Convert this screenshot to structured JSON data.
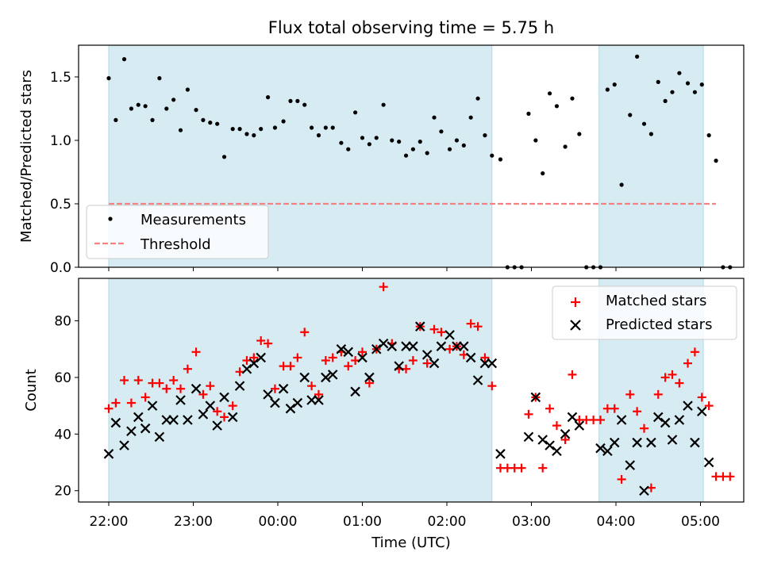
{
  "chart_data": [
    {
      "type": "scatter",
      "title": "Flux total observing time = 5.75 h",
      "ylabel": "Matched/Predicted stars",
      "xlabel": "",
      "ylim": [
        0,
        1.75
      ],
      "x_tick_labels": [
        "22:00",
        "23:00",
        "00:00",
        "01:00",
        "02:00",
        "03:00",
        "04:00",
        "05:00"
      ],
      "y_ticks": [
        0.0,
        0.5,
        1.0,
        1.5
      ],
      "y_tick_labels": [
        "0.0",
        "0.5",
        "1.0",
        "1.5"
      ],
      "legend_position": "lower-left",
      "shaded_intervals": [
        [
          "22:00",
          "02:32"
        ],
        [
          "03:48",
          "05:02"
        ]
      ],
      "series": [
        {
          "name": "Measurements",
          "color": "#000000",
          "points": [
            [
              "22:00",
              1.49
            ],
            [
              "22:05",
              1.16
            ],
            [
              "22:11",
              1.64
            ],
            [
              "22:16",
              1.25
            ],
            [
              "22:21",
              1.28
            ],
            [
              "22:26",
              1.27
            ],
            [
              "22:31",
              1.16
            ],
            [
              "22:36",
              1.49
            ],
            [
              "22:41",
              1.25
            ],
            [
              "22:46",
              1.32
            ],
            [
              "22:51",
              1.08
            ],
            [
              "22:56",
              1.4
            ],
            [
              "23:02",
              1.24
            ],
            [
              "23:07",
              1.16
            ],
            [
              "23:12",
              1.14
            ],
            [
              "23:17",
              1.13
            ],
            [
              "23:22",
              0.87
            ],
            [
              "23:28",
              1.09
            ],
            [
              "23:33",
              1.09
            ],
            [
              "23:38",
              1.05
            ],
            [
              "23:43",
              1.04
            ],
            [
              "23:48",
              1.09
            ],
            [
              "23:53",
              1.34
            ],
            [
              "23:58",
              1.1
            ],
            [
              "00:04",
              1.15
            ],
            [
              "00:09",
              1.31
            ],
            [
              "00:14",
              1.31
            ],
            [
              "00:19",
              1.28
            ],
            [
              "00:24",
              1.1
            ],
            [
              "00:29",
              1.04
            ],
            [
              "00:34",
              1.1
            ],
            [
              "00:39",
              1.1
            ],
            [
              "00:45",
              0.98
            ],
            [
              "00:50",
              0.93
            ],
            [
              "00:55",
              1.22
            ],
            [
              "01:00",
              1.02
            ],
            [
              "01:05",
              0.97
            ],
            [
              "01:10",
              1.02
            ],
            [
              "01:15",
              1.28
            ],
            [
              "01:21",
              1.0
            ],
            [
              "01:26",
              0.99
            ],
            [
              "01:31",
              0.88
            ],
            [
              "01:36",
              0.93
            ],
            [
              "01:41",
              0.99
            ],
            [
              "01:46",
              0.9
            ],
            [
              "01:51",
              1.18
            ],
            [
              "01:56",
              1.07
            ],
            [
              "02:02",
              0.93
            ],
            [
              "02:07",
              1.0
            ],
            [
              "02:12",
              0.96
            ],
            [
              "02:17",
              1.18
            ],
            [
              "02:22",
              1.33
            ],
            [
              "02:27",
              1.04
            ],
            [
              "02:32",
              0.88
            ],
            [
              "02:38",
              0.85
            ],
            [
              "02:43",
              0.0
            ],
            [
              "02:48",
              0.0
            ],
            [
              "02:53",
              0.0
            ],
            [
              "02:58",
              1.21
            ],
            [
              "03:03",
              1.0
            ],
            [
              "03:08",
              0.74
            ],
            [
              "03:13",
              1.37
            ],
            [
              "03:18",
              1.27
            ],
            [
              "03:24",
              0.95
            ],
            [
              "03:29",
              1.33
            ],
            [
              "03:34",
              1.05
            ],
            [
              "03:39",
              0.0
            ],
            [
              "03:44",
              0.0
            ],
            [
              "03:49",
              0.0
            ],
            [
              "03:54",
              1.4
            ],
            [
              "03:59",
              1.44
            ],
            [
              "04:04",
              0.65
            ],
            [
              "04:10",
              1.2
            ],
            [
              "04:15",
              1.66
            ],
            [
              "04:20",
              1.13
            ],
            [
              "04:25",
              1.05
            ],
            [
              "04:30",
              1.46
            ],
            [
              "04:35",
              1.31
            ],
            [
              "04:40",
              1.38
            ],
            [
              "04:45",
              1.53
            ],
            [
              "04:51",
              1.45
            ],
            [
              "04:56",
              1.38
            ],
            [
              "05:01",
              1.44
            ],
            [
              "05:06",
              1.04
            ],
            [
              "05:11",
              0.84
            ],
            [
              "05:16",
              0.0
            ],
            [
              "05:21",
              0.0
            ]
          ]
        },
        {
          "name": "Threshold",
          "color": "#ff7f7f",
          "style": "dashed",
          "points": [
            [
              "22:00",
              0.5
            ],
            [
              "05:11",
              0.5
            ]
          ]
        }
      ]
    },
    {
      "type": "scatter",
      "title": "",
      "ylabel": "Count",
      "xlabel": "Time (UTC)",
      "ylim": [
        16,
        95
      ],
      "x_tick_labels": [
        "22:00",
        "23:00",
        "00:00",
        "01:00",
        "02:00",
        "03:00",
        "04:00",
        "05:00"
      ],
      "y_ticks": [
        20,
        40,
        60,
        80
      ],
      "y_tick_labels": [
        "20",
        "40",
        "60",
        "80"
      ],
      "legend_position": "upper-right",
      "shaded_intervals": [
        [
          "22:00",
          "02:32"
        ],
        [
          "03:48",
          "05:02"
        ]
      ],
      "series": [
        {
          "name": "Matched stars",
          "marker": "plus",
          "color": "#ff0000",
          "points": [
            [
              "22:00",
              49
            ],
            [
              "22:05",
              51
            ],
            [
              "22:11",
              59
            ],
            [
              "22:16",
              51
            ],
            [
              "22:21",
              59
            ],
            [
              "22:26",
              53
            ],
            [
              "22:31",
              58
            ],
            [
              "22:36",
              58
            ],
            [
              "22:41",
              56
            ],
            [
              "22:46",
              59
            ],
            [
              "22:51",
              56
            ],
            [
              "22:56",
              63
            ],
            [
              "23:02",
              69
            ],
            [
              "23:07",
              54
            ],
            [
              "23:12",
              57
            ],
            [
              "23:17",
              48
            ],
            [
              "23:22",
              46
            ],
            [
              "23:28",
              50
            ],
            [
              "23:33",
              62
            ],
            [
              "23:38",
              66
            ],
            [
              "23:43",
              67
            ],
            [
              "23:48",
              73
            ],
            [
              "23:53",
              72
            ],
            [
              "23:58",
              56
            ],
            [
              "00:04",
              64
            ],
            [
              "00:09",
              64
            ],
            [
              "00:14",
              67
            ],
            [
              "00:19",
              76
            ],
            [
              "00:24",
              57
            ],
            [
              "00:29",
              54
            ],
            [
              "00:34",
              66
            ],
            [
              "00:39",
              67
            ],
            [
              "00:45",
              69
            ],
            [
              "00:50",
              64
            ],
            [
              "00:55",
              66
            ],
            [
              "01:00",
              69
            ],
            [
              "01:05",
              58
            ],
            [
              "01:10",
              70
            ],
            [
              "01:15",
              92
            ],
            [
              "01:21",
              72
            ],
            [
              "01:26",
              63
            ],
            [
              "01:31",
              63
            ],
            [
              "01:36",
              66
            ],
            [
              "01:41",
              78
            ],
            [
              "01:46",
              65
            ],
            [
              "01:51",
              77
            ],
            [
              "01:56",
              76
            ],
            [
              "02:02",
              70
            ],
            [
              "02:07",
              71
            ],
            [
              "02:12",
              68
            ],
            [
              "02:17",
              79
            ],
            [
              "02:22",
              78
            ],
            [
              "02:27",
              67
            ],
            [
              "02:32",
              57
            ],
            [
              "02:38",
              28
            ],
            [
              "02:43",
              28
            ],
            [
              "02:48",
              28
            ],
            [
              "02:53",
              28
            ],
            [
              "02:58",
              47
            ],
            [
              "03:03",
              53
            ],
            [
              "03:08",
              28
            ],
            [
              "03:13",
              49
            ],
            [
              "03:18",
              43
            ],
            [
              "03:24",
              38
            ],
            [
              "03:29",
              61
            ],
            [
              "03:34",
              45
            ],
            [
              "03:39",
              45
            ],
            [
              "03:44",
              45
            ],
            [
              "03:49",
              45
            ],
            [
              "03:54",
              49
            ],
            [
              "03:59",
              49
            ],
            [
              "04:04",
              24
            ],
            [
              "04:10",
              54
            ],
            [
              "04:15",
              48
            ],
            [
              "04:20",
              42
            ],
            [
              "04:25",
              21
            ],
            [
              "04:30",
              54
            ],
            [
              "04:35",
              60
            ],
            [
              "04:40",
              61
            ],
            [
              "04:45",
              58
            ],
            [
              "04:51",
              65
            ],
            [
              "04:56",
              69
            ],
            [
              "05:01",
              53
            ],
            [
              "05:06",
              50
            ],
            [
              "05:11",
              25
            ],
            [
              "05:16",
              25
            ],
            [
              "05:21",
              25
            ]
          ]
        },
        {
          "name": "Predicted stars",
          "marker": "x",
          "color": "#000000",
          "points": [
            [
              "22:00",
              33
            ],
            [
              "22:05",
              44
            ],
            [
              "22:11",
              36
            ],
            [
              "22:16",
              41
            ],
            [
              "22:21",
              46
            ],
            [
              "22:26",
              42
            ],
            [
              "22:31",
              50
            ],
            [
              "22:36",
              39
            ],
            [
              "22:41",
              45
            ],
            [
              "22:46",
              45
            ],
            [
              "22:51",
              52
            ],
            [
              "22:56",
              45
            ],
            [
              "23:02",
              56
            ],
            [
              "23:07",
              47
            ],
            [
              "23:12",
              50
            ],
            [
              "23:17",
              43
            ],
            [
              "23:22",
              53
            ],
            [
              "23:28",
              46
            ],
            [
              "23:33",
              57
            ],
            [
              "23:38",
              63
            ],
            [
              "23:43",
              65
            ],
            [
              "23:48",
              67
            ],
            [
              "23:53",
              54
            ],
            [
              "23:58",
              51
            ],
            [
              "00:04",
              56
            ],
            [
              "00:09",
              49
            ],
            [
              "00:14",
              51
            ],
            [
              "00:19",
              60
            ],
            [
              "00:24",
              52
            ],
            [
              "00:29",
              52
            ],
            [
              "00:34",
              60
            ],
            [
              "00:39",
              61
            ],
            [
              "00:45",
              70
            ],
            [
              "00:50",
              69
            ],
            [
              "00:55",
              55
            ],
            [
              "01:00",
              67
            ],
            [
              "01:05",
              60
            ],
            [
              "01:10",
              70
            ],
            [
              "01:15",
              72
            ],
            [
              "01:21",
              71
            ],
            [
              "01:26",
              64
            ],
            [
              "01:31",
              71
            ],
            [
              "01:36",
              71
            ],
            [
              "01:41",
              78
            ],
            [
              "01:46",
              68
            ],
            [
              "01:51",
              65
            ],
            [
              "01:56",
              71
            ],
            [
              "02:02",
              75
            ],
            [
              "02:07",
              71
            ],
            [
              "02:12",
              71
            ],
            [
              "02:17",
              67
            ],
            [
              "02:22",
              59
            ],
            [
              "02:27",
              65
            ],
            [
              "02:32",
              65
            ],
            [
              "02:38",
              33
            ],
            [
              "02:58",
              39
            ],
            [
              "03:03",
              53
            ],
            [
              "03:08",
              38
            ],
            [
              "03:13",
              36
            ],
            [
              "03:18",
              34
            ],
            [
              "03:24",
              40
            ],
            [
              "03:29",
              46
            ],
            [
              "03:34",
              43
            ],
            [
              "03:49",
              35
            ],
            [
              "03:54",
              34
            ],
            [
              "03:59",
              37
            ],
            [
              "04:04",
              45
            ],
            [
              "04:10",
              29
            ],
            [
              "04:15",
              37
            ],
            [
              "04:20",
              20
            ],
            [
              "04:25",
              37
            ],
            [
              "04:30",
              46
            ],
            [
              "04:35",
              44
            ],
            [
              "04:40",
              38
            ],
            [
              "04:45",
              45
            ],
            [
              "04:51",
              50
            ],
            [
              "04:56",
              37
            ],
            [
              "05:01",
              48
            ],
            [
              "05:06",
              30
            ]
          ]
        }
      ]
    }
  ]
}
